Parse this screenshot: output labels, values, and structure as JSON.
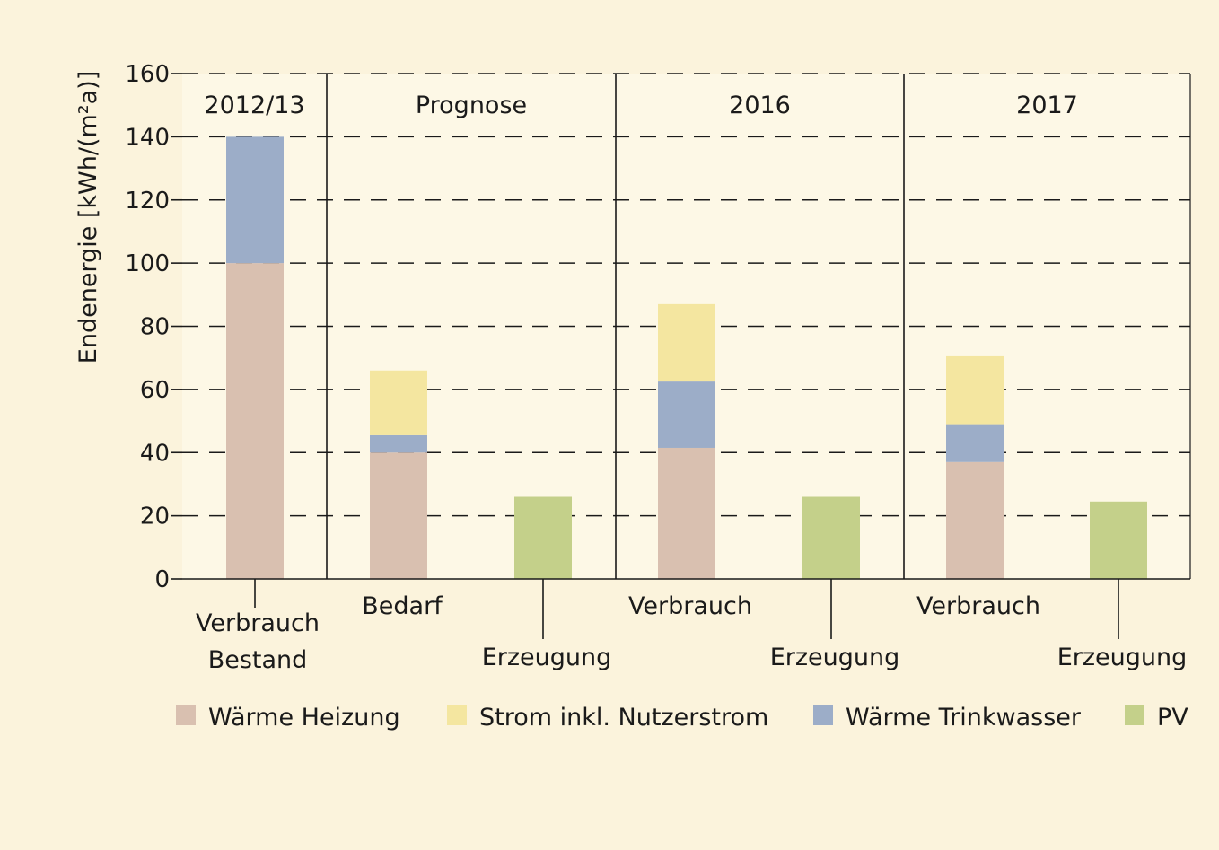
{
  "chart_data": {
    "type": "bar",
    "stacked": true,
    "ylabel": "Endenergie [kWh/(m²a)]",
    "ylim": [
      0,
      160
    ],
    "yticks": [
      0,
      20,
      40,
      60,
      80,
      100,
      120,
      140,
      160
    ],
    "grid": "horizontal dashed",
    "legend_position": "bottom",
    "groups": [
      "2012/13",
      "Prognose",
      "2016",
      "2017"
    ],
    "series": [
      {
        "name": "Wärme Heizung",
        "color": "#d9c0b0"
      },
      {
        "name": "Strom inkl. Nutzerstrom",
        "color": "#f4e6a0"
      },
      {
        "name": "Wärme Trinkwasser",
        "color": "#9cadc8"
      },
      {
        "name": "PV",
        "color": "#c4d08a"
      }
    ],
    "bars": [
      {
        "group": 0,
        "label": [
          "Verbrauch",
          "Bestand"
        ],
        "label_row": 1,
        "values": {
          "Wärme Heizung": 100,
          "Wärme Trinkwasser": 40
        }
      },
      {
        "group": 1,
        "label": [
          "Bedarf"
        ],
        "label_row": 0,
        "values": {
          "Wärme Heizung": 40,
          "Wärme Trinkwasser": 5.5,
          "Strom inkl. Nutzerstrom": 20.5
        }
      },
      {
        "group": 1,
        "label": [
          "Erzeugung"
        ],
        "label_row": 2,
        "values": {
          "PV": 26
        }
      },
      {
        "group": 2,
        "label": [
          "Verbrauch"
        ],
        "label_row": 0,
        "values": {
          "Wärme Heizung": 41.5,
          "Wärme Trinkwasser": 21,
          "Strom inkl. Nutzerstrom": 24.5
        }
      },
      {
        "group": 2,
        "label": [
          "Erzeugung"
        ],
        "label_row": 2,
        "values": {
          "PV": 26
        }
      },
      {
        "group": 3,
        "label": [
          "Verbrauch"
        ],
        "label_row": 0,
        "values": {
          "Wärme Heizung": 37,
          "Wärme Trinkwasser": 12,
          "Strom inkl. Nutzerstrom": 21.5
        }
      },
      {
        "group": 3,
        "label": [
          "Erzeugung"
        ],
        "label_row": 2,
        "values": {
          "PV": 24.5
        }
      }
    ]
  }
}
